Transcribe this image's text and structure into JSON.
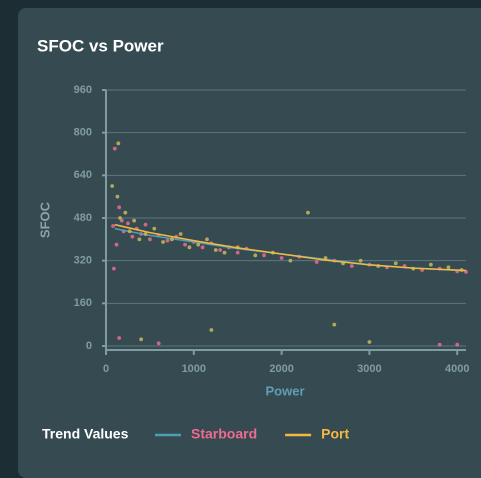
{
  "chart_data": {
    "type": "scatter",
    "title": "SFOC vs Power",
    "x_label": "Power",
    "y_label": "SFOC",
    "xlim": [
      0,
      4100
    ],
    "xticks": [
      0,
      1000,
      2000,
      3000,
      4000
    ],
    "ylim": [
      -15,
      960
    ],
    "yticks": [
      0,
      160,
      320,
      480,
      640,
      800,
      960
    ],
    "grid": true,
    "legend_title": "Trend Values",
    "series": [
      {
        "name": "Starboard",
        "color": "#ef6b92",
        "line_color": "#4f9fb3",
        "x": [
          80,
          120,
          150,
          180,
          200,
          250,
          300,
          350,
          400,
          450,
          500,
          600,
          700,
          800,
          900,
          1000,
          1100,
          1200,
          1300,
          1400,
          1500,
          1600,
          1800,
          2000,
          2200,
          2400,
          2600,
          2800,
          3000,
          3200,
          3400,
          3600,
          3800,
          4000,
          4100,
          100,
          90,
          150,
          600,
          3800,
          4000
        ],
        "values": [
          450,
          380,
          520,
          470,
          430,
          460,
          410,
          440,
          420,
          455,
          400,
          415,
          395,
          410,
          380,
          390,
          370,
          385,
          360,
          370,
          350,
          365,
          340,
          330,
          335,
          315,
          320,
          300,
          305,
          295,
          300,
          285,
          290,
          280,
          278,
          740,
          290,
          30,
          10,
          5,
          5
        ],
        "trend_x": [
          100,
          500,
          1000,
          1500,
          2000,
          2500,
          3000,
          3500,
          4100
        ],
        "trend_values": [
          440,
          415,
          390,
          365,
          345,
          325,
          305,
          292,
          282
        ]
      },
      {
        "name": "Port",
        "color": "#f5b942",
        "point_color": "#c9b857",
        "line_color": "#f5b942",
        "x": [
          70,
          130,
          160,
          220,
          270,
          320,
          380,
          450,
          550,
          650,
          750,
          850,
          950,
          1050,
          1150,
          1250,
          1350,
          1500,
          1700,
          1900,
          2100,
          2300,
          2500,
          2700,
          2900,
          3100,
          3300,
          3500,
          3700,
          3900,
          4050,
          140,
          400,
          1200,
          2600,
          3000
        ],
        "values": [
          600,
          560,
          480,
          500,
          430,
          470,
          400,
          420,
          440,
          390,
          400,
          420,
          370,
          380,
          400,
          360,
          350,
          370,
          340,
          350,
          320,
          500,
          330,
          310,
          320,
          300,
          310,
          290,
          305,
          295,
          285,
          760,
          25,
          60,
          80,
          15
        ],
        "trend_x": [
          100,
          500,
          1000,
          1500,
          2000,
          2500,
          3000,
          3500,
          4100
        ],
        "trend_values": [
          455,
          425,
          395,
          368,
          345,
          322,
          304,
          292,
          283
        ]
      }
    ]
  }
}
